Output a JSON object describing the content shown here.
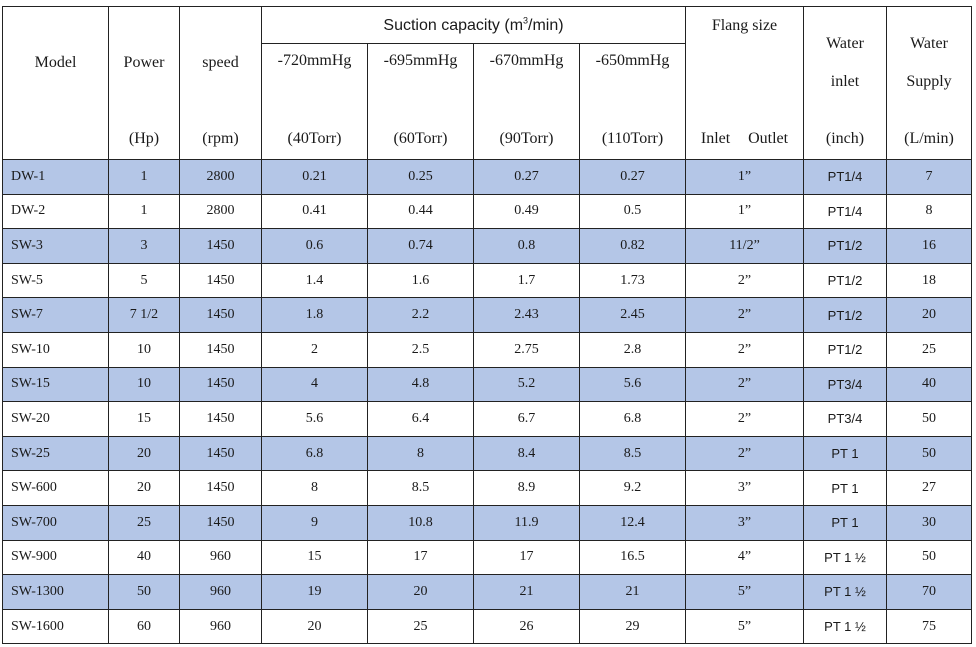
{
  "header": {
    "model": "Model",
    "power": "Power",
    "speed": "speed",
    "suction_capacity": "Suction capacity (m³/min)",
    "pressures": [
      "-720mmHg",
      "-695mmHg",
      "-670mmHg",
      "-650mmHg"
    ],
    "flang_size": "Flang size",
    "water_inlet_line1": "Water",
    "water_inlet_line2": "inlet",
    "water_supply_line1": "Water",
    "water_supply_line2": "Supply",
    "units": {
      "power": "(Hp)",
      "speed": "(rpm)",
      "torr": [
        "(40Torr)",
        "(60Torr)",
        "(90Torr)",
        "(110Torr)"
      ],
      "flange_inlet": "Inlet",
      "flange_outlet": "Outlet",
      "water_inlet": "(inch)",
      "water_supply": "(L/min)"
    }
  },
  "rows": [
    {
      "model": "DW-1",
      "power": "1",
      "speed": "2800",
      "c720": "0.21",
      "c695": "0.25",
      "c670": "0.27",
      "c650": "0.27",
      "flange": "1”",
      "inlet": "PT1/4",
      "supply": "7"
    },
    {
      "model": "DW-2",
      "power": "1",
      "speed": "2800",
      "c720": "0.41",
      "c695": "0.44",
      "c670": "0.49",
      "c650": "0.5",
      "flange": "1”",
      "inlet": "PT1/4",
      "supply": "8"
    },
    {
      "model": "SW-3",
      "power": "3",
      "speed": "1450",
      "c720": "0.6",
      "c695": "0.74",
      "c670": "0.8",
      "c650": "0.82",
      "flange": "11/2”",
      "inlet": "PT1/2",
      "supply": "16"
    },
    {
      "model": "SW-5",
      "power": "5",
      "speed": "1450",
      "c720": "1.4",
      "c695": "1.6",
      "c670": "1.7",
      "c650": "1.73",
      "flange": "2”",
      "inlet": "PT1/2",
      "supply": "18"
    },
    {
      "model": "SW-7",
      "power": "7 1/2",
      "speed": "1450",
      "c720": "1.8",
      "c695": "2.2",
      "c670": "2.43",
      "c650": "2.45",
      "flange": "2”",
      "inlet": "PT1/2",
      "supply": "20"
    },
    {
      "model": "SW-10",
      "power": "10",
      "speed": "1450",
      "c720": "2",
      "c695": "2.5",
      "c670": "2.75",
      "c650": "2.8",
      "flange": "2”",
      "inlet": "PT1/2",
      "supply": "25"
    },
    {
      "model": "SW-15",
      "power": "10",
      "speed": "1450",
      "c720": "4",
      "c695": "4.8",
      "c670": "5.2",
      "c650": "5.6",
      "flange": "2”",
      "inlet": "PT3/4",
      "supply": "40"
    },
    {
      "model": "SW-20",
      "power": "15",
      "speed": "1450",
      "c720": "5.6",
      "c695": "6.4",
      "c670": "6.7",
      "c650": "6.8",
      "flange": "2”",
      "inlet": "PT3/4",
      "supply": "50"
    },
    {
      "model": "SW-25",
      "power": "20",
      "speed": "1450",
      "c720": "6.8",
      "c695": "8",
      "c670": "8.4",
      "c650": "8.5",
      "flange": "2”",
      "inlet": "PT 1",
      "supply": "50"
    },
    {
      "model": "SW-600",
      "power": "20",
      "speed": "1450",
      "c720": "8",
      "c695": "8.5",
      "c670": "8.9",
      "c650": "9.2",
      "flange": "3”",
      "inlet": "PT 1",
      "supply": "27"
    },
    {
      "model": "SW-700",
      "power": "25",
      "speed": "1450",
      "c720": "9",
      "c695": "10.8",
      "c670": "11.9",
      "c650": "12.4",
      "flange": "3”",
      "inlet": "PT 1",
      "supply": "30"
    },
    {
      "model": "SW-900",
      "power": "40",
      "speed": "960",
      "c720": "15",
      "c695": "17",
      "c670": "17",
      "c650": "16.5",
      "flange": "4”",
      "inlet": "PT 1 ½",
      "supply": "50"
    },
    {
      "model": "SW-1300",
      "power": "50",
      "speed": "960",
      "c720": "19",
      "c695": "20",
      "c670": "21",
      "c650": "21",
      "flange": "5”",
      "inlet": "PT 1 ½",
      "supply": "70"
    },
    {
      "model": "SW-1600",
      "power": "60",
      "speed": "960",
      "c720": "20",
      "c695": "25",
      "c670": "26",
      "c650": "29",
      "flange": "5”",
      "inlet": "PT 1 ½",
      "supply": "75"
    }
  ],
  "colors": {
    "band": "#b4c6e7",
    "border": "#222222"
  }
}
